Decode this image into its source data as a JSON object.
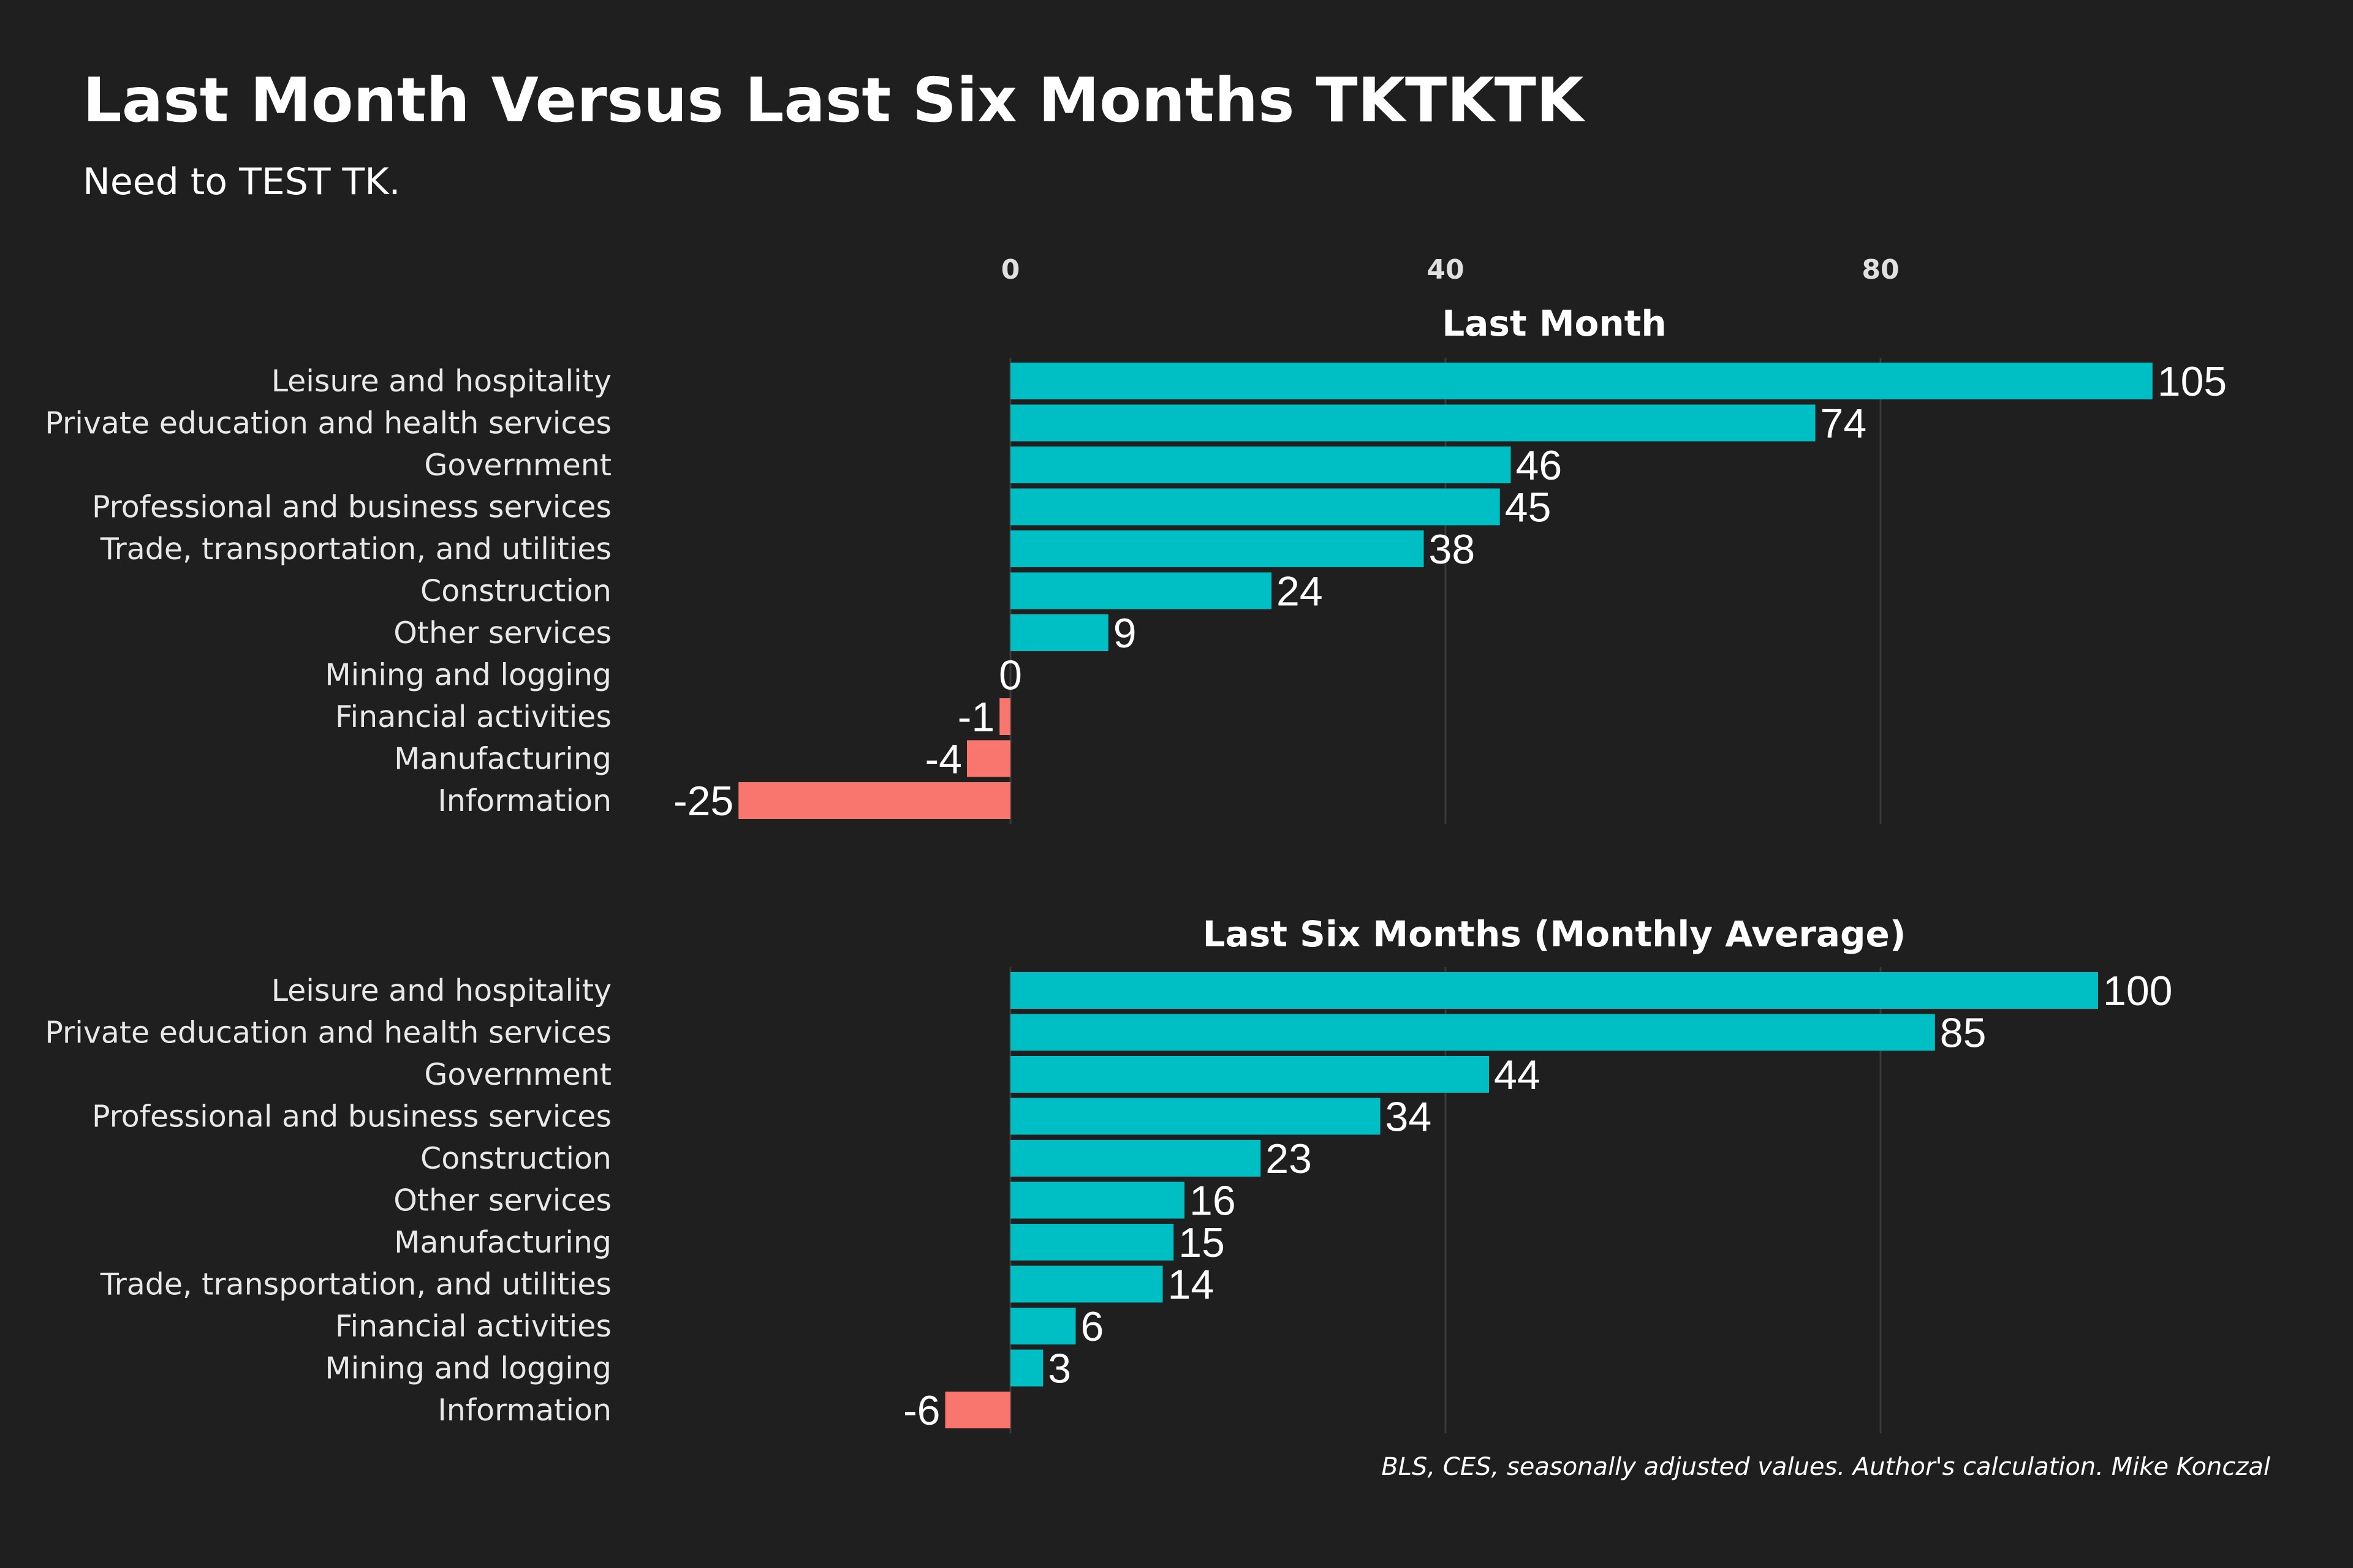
{
  "title": "Last Month Versus Last Six Months TKTKTK",
  "subtitle": "Need to TEST TK.",
  "caption": "BLS, CES, seasonally adjusted values. Author's calculation. Mike Konczal",
  "colors": {
    "background": "#1f1f1f",
    "positive": "#00bfc4",
    "negative": "#f8766d",
    "grid": "#3a3a3a"
  },
  "chart_data": [
    {
      "type": "bar",
      "orientation": "horizontal",
      "title": "Last Month",
      "categories": [
        "Leisure and hospitality",
        "Private education and health services",
        "Government",
        "Professional and business services",
        "Trade, transportation, and utilities",
        "Construction",
        "Other services",
        "Mining and logging",
        "Financial activities",
        "Manufacturing",
        "Information"
      ],
      "values": [
        105,
        74,
        46,
        45,
        38,
        24,
        9,
        0,
        -1,
        -4,
        -25
      ],
      "xticks": [
        0,
        40,
        80
      ],
      "xlim": [
        -25,
        105
      ],
      "grid": true
    },
    {
      "type": "bar",
      "orientation": "horizontal",
      "title": "Last Six Months (Monthly Average)",
      "categories": [
        "Leisure and hospitality",
        "Private education and health services",
        "Government",
        "Professional and business services",
        "Construction",
        "Other services",
        "Manufacturing",
        "Trade, transportation, and utilities",
        "Financial activities",
        "Mining and logging",
        "Information"
      ],
      "values": [
        100,
        85,
        44,
        34,
        23,
        16,
        15,
        14,
        6,
        3,
        -6
      ],
      "xticks": [
        0,
        40,
        80
      ],
      "xlim": [
        -25,
        105
      ],
      "grid": true
    }
  ]
}
